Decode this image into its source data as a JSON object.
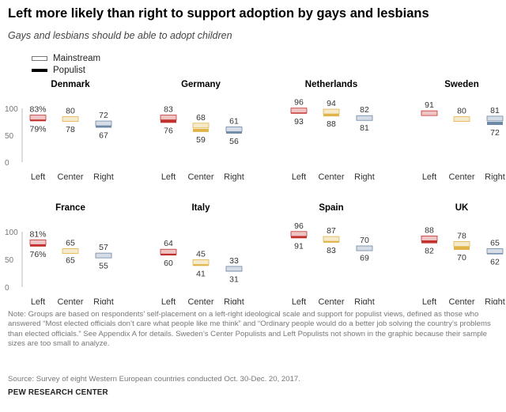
{
  "title": "Left more likely than right to support adoption by gays and lesbians",
  "subtitle": "Gays and lesbians should be able to adopt children",
  "legend": {
    "mainstream": "Mainstream",
    "populist": "Populist"
  },
  "colors": {
    "Left": "#c1312d",
    "Center": "#e0b449",
    "Right": "#6d87a6",
    "axis": "#999999"
  },
  "chart_data": {
    "type": "dot",
    "ylim": [
      0,
      100
    ],
    "yticks": [
      0,
      50,
      100
    ],
    "categories": [
      "Left",
      "Center",
      "Right"
    ],
    "series": [
      "Mainstream",
      "Populist"
    ],
    "countries": [
      {
        "name": "Denmark",
        "mainstream": [
          83,
          80,
          72
        ],
        "populist": [
          79,
          78,
          67
        ],
        "labels": [
          "83%",
          "80",
          "72"
        ],
        "plabels": [
          "79%",
          "78",
          "67"
        ]
      },
      {
        "name": "Germany",
        "mainstream": [
          83,
          68,
          61
        ],
        "populist": [
          76,
          59,
          56
        ],
        "labels": [
          "83",
          "68",
          "61"
        ],
        "plabels": [
          "76",
          "59",
          "56"
        ]
      },
      {
        "name": "Netherlands",
        "mainstream": [
          96,
          94,
          82
        ],
        "populist": [
          93,
          88,
          81
        ],
        "labels": [
          "96",
          "94",
          "82"
        ],
        "plabels": [
          "93",
          "88",
          "81"
        ]
      },
      {
        "name": "Sweden",
        "mainstream": [
          91,
          80,
          81
        ],
        "populist": [
          null,
          null,
          72
        ],
        "labels": [
          "91",
          "80",
          "81"
        ],
        "plabels": [
          null,
          null,
          "72"
        ]
      },
      {
        "name": "France",
        "mainstream": [
          81,
          65,
          57
        ],
        "populist": [
          76,
          65,
          55
        ],
        "labels": [
          "81%",
          "65",
          "57"
        ],
        "plabels": [
          "76%",
          "65",
          "55"
        ]
      },
      {
        "name": "Italy",
        "mainstream": [
          64,
          45,
          33
        ],
        "populist": [
          60,
          41,
          31
        ],
        "labels": [
          "64",
          "45",
          "33"
        ],
        "plabels": [
          "60",
          "41",
          "31"
        ]
      },
      {
        "name": "Spain",
        "mainstream": [
          96,
          87,
          70
        ],
        "populist": [
          91,
          83,
          69
        ],
        "labels": [
          "96",
          "87",
          "70"
        ],
        "plabels": [
          "91",
          "83",
          "69"
        ]
      },
      {
        "name": "UK",
        "mainstream": [
          88,
          78,
          65
        ],
        "populist": [
          82,
          70,
          62
        ],
        "labels": [
          "88",
          "78",
          "65"
        ],
        "plabels": [
          "82",
          "70",
          "62"
        ]
      }
    ]
  },
  "note": "Note: Groups are based on respondents’ self-placement on a left-right ideological scale and support for populist views, defined as those who answered “Most elected officials don’t care what people like me think” and “Ordinary people would do a better job solving the country’s problems than elected officials.” See Appendix A for details. Sweden’s Center Populists and Left Populists not shown in the graphic because their sample sizes are too small to analyze.",
  "source": "Source: Survey of eight Western European countries conducted Oct. 30-Dec. 20, 2017.",
  "brand": "PEW RESEARCH CENTER"
}
